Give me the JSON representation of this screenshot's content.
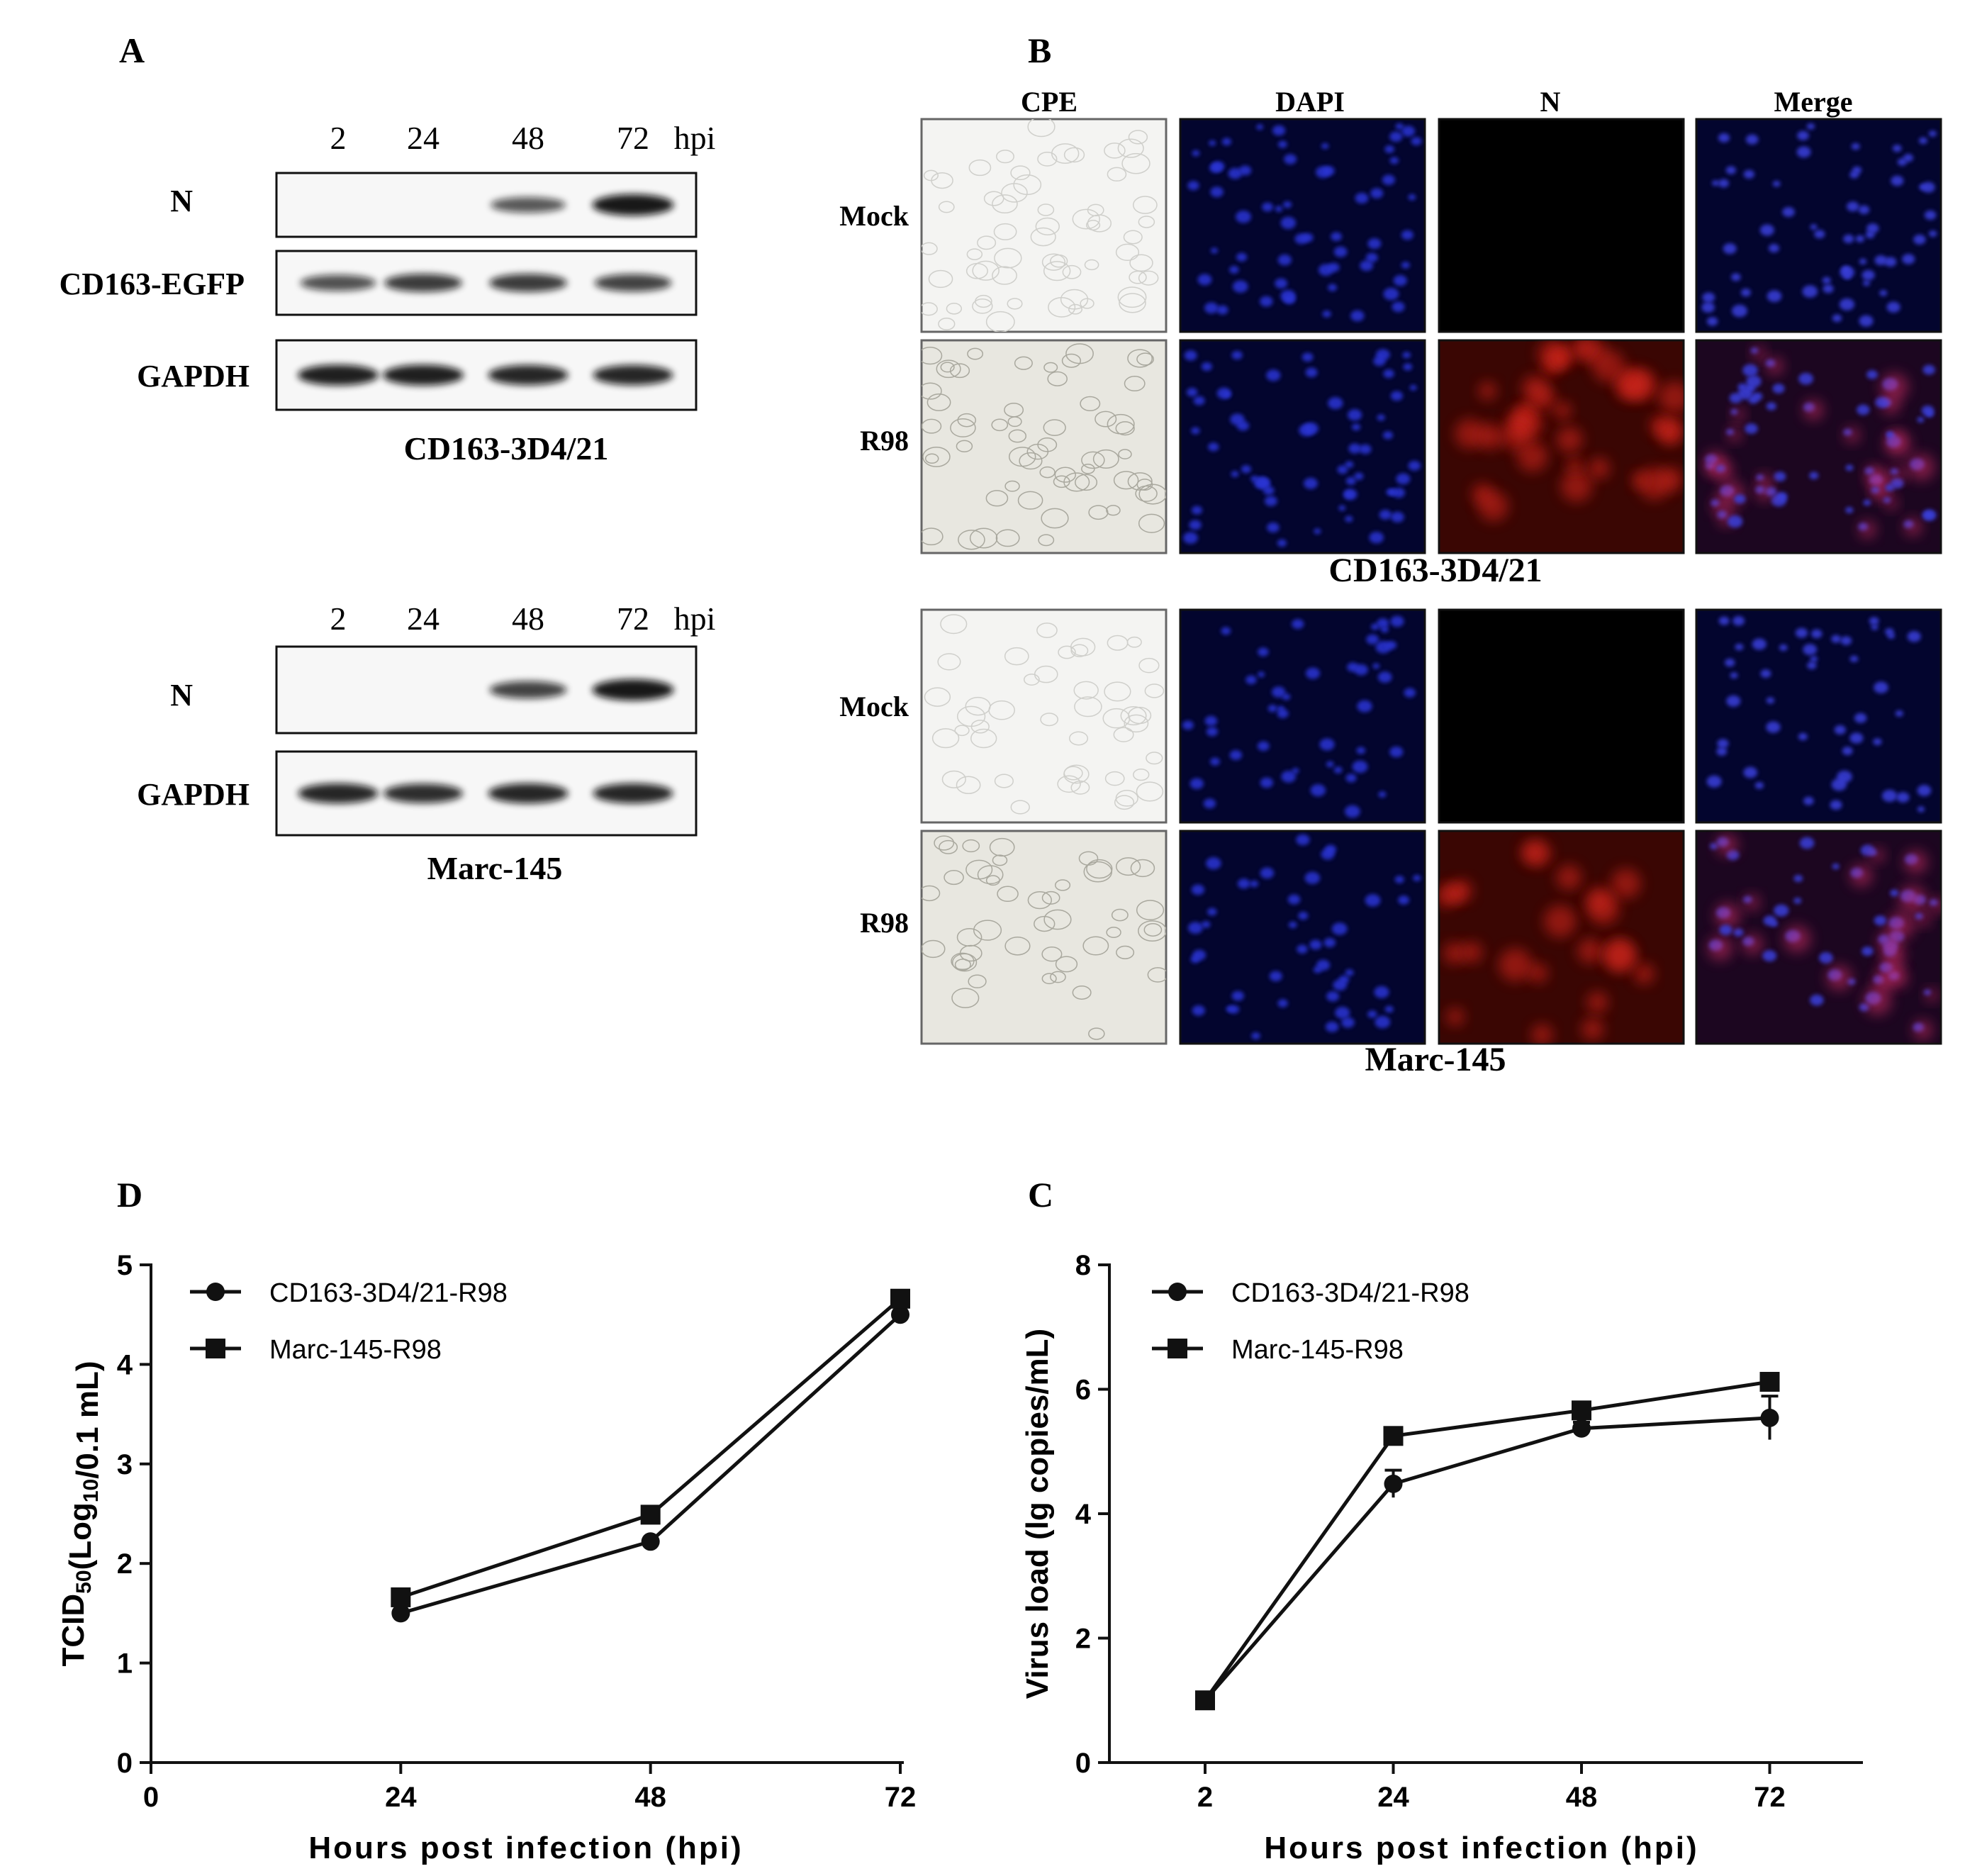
{
  "panels": {
    "A": {
      "letter": "A",
      "blots": [
        {
          "timepoints": [
            "2",
            "24",
            "48",
            "72"
          ],
          "unit": "hpi",
          "rows": [
            {
              "label": "N",
              "intensity": [
                0,
                0,
                0.55,
                1.0
              ]
            },
            {
              "label": "CD163-EGFP",
              "intensity": [
                0.6,
                0.75,
                0.75,
                0.7
              ]
            },
            {
              "label": "GAPDH",
              "intensity": [
                0.95,
                0.95,
                0.9,
                0.9
              ]
            }
          ],
          "caption": "CD163-3D4/21"
        },
        {
          "timepoints": [
            "2",
            "24",
            "48",
            "72"
          ],
          "unit": "hpi",
          "rows": [
            {
              "label": "N",
              "intensity": [
                0,
                0,
                0.7,
                1.0
              ]
            },
            {
              "label": "GAPDH",
              "intensity": [
                0.9,
                0.85,
                0.9,
                0.9
              ]
            }
          ],
          "caption": "Marc-145"
        }
      ]
    },
    "B": {
      "letter": "B",
      "columns": [
        "CPE",
        "DAPI",
        "N",
        "Merge"
      ],
      "groups": [
        {
          "rows": [
            "Mock",
            "R98"
          ],
          "caption": "CD163-3D4/21"
        },
        {
          "rows": [
            "Mock",
            "R98"
          ],
          "caption": "Marc-145"
        }
      ]
    },
    "D": {
      "letter": "D"
    },
    "C": {
      "letter": "C"
    }
  },
  "chart_data": [
    {
      "panel": "D",
      "type": "line",
      "xlabel": "Hours post infection (hpi)",
      "ylabel_main": "TCID",
      "ylabel_sub": "50",
      "ylabel_rest": "(Log",
      "ylabel_sub2": "10",
      "ylabel_end": "/0.1 mL)",
      "xlim": [
        0,
        72
      ],
      "ylim": [
        0,
        5
      ],
      "xticks": [
        0,
        24,
        48,
        72
      ],
      "yticks": [
        0,
        1,
        2,
        3,
        4,
        5
      ],
      "legend_position": "top-left",
      "series": [
        {
          "name": "CD163-3D4/21-R98",
          "marker": "circle",
          "x": [
            24,
            48,
            72
          ],
          "y": [
            1.5,
            2.22,
            4.5
          ]
        },
        {
          "name": "Marc-145-R98",
          "marker": "square",
          "x": [
            24,
            48,
            72
          ],
          "y": [
            1.66,
            2.49,
            4.66
          ]
        }
      ]
    },
    {
      "panel": "C",
      "type": "line",
      "xlabel": "Hours post infection (hpi)",
      "ylabel": "Virus load (lg copies/mL)",
      "categories": [
        "2",
        "24",
        "48",
        "72"
      ],
      "ylim": [
        0,
        8
      ],
      "yticks": [
        0,
        2,
        4,
        6,
        8
      ],
      "legend_position": "top-left",
      "series": [
        {
          "name": "CD163-3D4/21-R98",
          "marker": "circle",
          "values": [
            1.0,
            4.48,
            5.37,
            5.54
          ],
          "errors": [
            0,
            0.22,
            0.1,
            0.35
          ]
        },
        {
          "name": "Marc-145-R98",
          "marker": "square",
          "values": [
            1.0,
            5.25,
            5.66,
            6.12
          ],
          "errors": [
            0,
            0.08,
            0.1,
            0.1
          ]
        }
      ]
    }
  ]
}
